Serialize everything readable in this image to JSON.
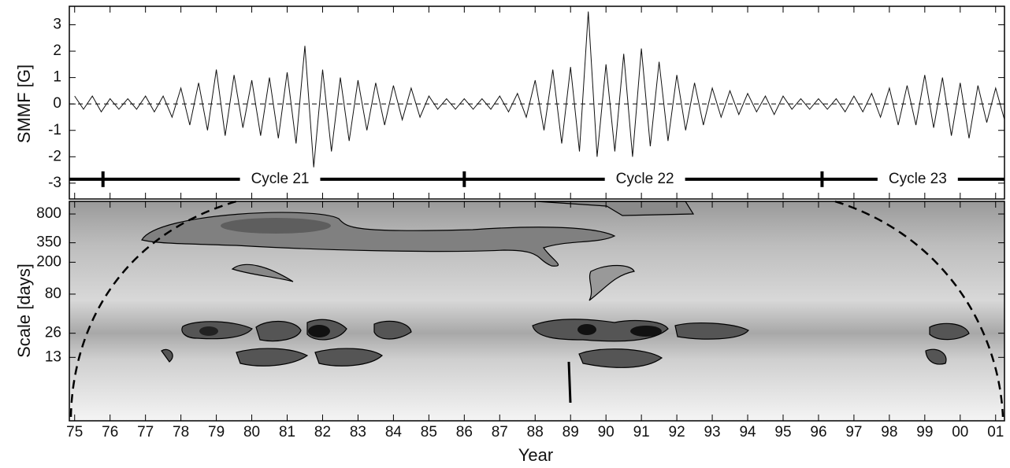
{
  "chart_data": [
    {
      "type": "line",
      "ylabel": "SMMF [G]",
      "color": "#111111",
      "xlim": [
        74.85,
        101.25
      ],
      "ylim": [
        -3.6,
        3.7
      ],
      "yticks": [
        -3,
        -2,
        -1,
        0,
        1,
        2,
        3
      ],
      "x": [
        75,
        75.25,
        75.5,
        75.75,
        76,
        76.25,
        76.5,
        76.75,
        77,
        77.25,
        77.5,
        77.75,
        78,
        78.25,
        78.5,
        78.75,
        79,
        79.25,
        79.5,
        79.75,
        80,
        80.25,
        80.5,
        80.75,
        81,
        81.25,
        81.5,
        81.75,
        82,
        82.25,
        82.5,
        82.75,
        83,
        83.25,
        83.5,
        83.75,
        84,
        84.25,
        84.5,
        84.75,
        85,
        85.25,
        85.5,
        85.75,
        86,
        86.25,
        86.5,
        86.75,
        87,
        87.25,
        87.5,
        87.75,
        88,
        88.25,
        88.5,
        88.75,
        89,
        89.25,
        89.5,
        89.75,
        90,
        90.25,
        90.5,
        90.75,
        91,
        91.25,
        91.5,
        91.75,
        92,
        92.25,
        92.5,
        92.75,
        93,
        93.25,
        93.5,
        93.75,
        94,
        94.25,
        94.5,
        94.75,
        95,
        95.25,
        95.5,
        95.75,
        96,
        96.25,
        96.5,
        96.75,
        97,
        97.25,
        97.5,
        97.75,
        98,
        98.25,
        98.5,
        98.75,
        99,
        99.25,
        99.5,
        99.75,
        100,
        100.25,
        100.5,
        100.75,
        101,
        101.25
      ],
      "series": [
        {
          "values": [
            0.3,
            -0.2,
            0.3,
            -0.3,
            0.2,
            -0.2,
            0.2,
            -0.2,
            0.3,
            -0.3,
            0.3,
            -0.5,
            0.6,
            -0.8,
            0.8,
            -1.0,
            1.3,
            -1.2,
            1.1,
            -0.9,
            0.9,
            -1.2,
            1.0,
            -1.3,
            1.2,
            -1.5,
            2.2,
            -2.4,
            1.3,
            -1.8,
            1.0,
            -1.4,
            0.9,
            -1.0,
            0.8,
            -0.8,
            0.7,
            -0.6,
            0.6,
            -0.5,
            0.3,
            -0.2,
            0.2,
            -0.2,
            0.2,
            -0.2,
            0.2,
            -0.2,
            0.3,
            -0.3,
            0.4,
            -0.5,
            0.9,
            -1.0,
            1.3,
            -1.5,
            1.4,
            -1.8,
            3.5,
            -2.0,
            1.5,
            -1.8,
            1.9,
            -2.0,
            2.1,
            -1.6,
            1.6,
            -1.4,
            1.1,
            -1.0,
            0.8,
            -0.8,
            0.6,
            -0.5,
            0.5,
            -0.4,
            0.4,
            -0.3,
            0.3,
            -0.4,
            0.3,
            -0.2,
            0.2,
            -0.2,
            0.2,
            -0.2,
            0.2,
            -0.3,
            0.3,
            -0.3,
            0.4,
            -0.5,
            0.6,
            -0.8,
            0.7,
            -0.8,
            1.1,
            -0.9,
            1.0,
            -1.2,
            0.8,
            -1.3,
            0.7,
            -0.7,
            0.6,
            -0.6
          ]
        }
      ],
      "cycle_level": -2.85,
      "cycle_minima": [
        75.8,
        86.0,
        96.1
      ],
      "cycle_labels": [
        {
          "text": "Cycle 21",
          "x": 80.8
        },
        {
          "text": "Cycle 22",
          "x": 91.1
        },
        {
          "text": "Cycle 23",
          "x": 98.8
        }
      ]
    },
    {
      "type": "wavelet",
      "ylabel": "Scale [days]",
      "xlabel": "Year",
      "log_y": true,
      "xlim": [
        74.85,
        101.25
      ],
      "ylim": [
        2.1,
        1150
      ],
      "yticks": [
        13,
        26,
        80,
        200,
        350,
        800
      ],
      "xticks": [
        75,
        76,
        77,
        78,
        79,
        80,
        81,
        82,
        83,
        84,
        85,
        86,
        87,
        88,
        89,
        90,
        91,
        92,
        93,
        94,
        95,
        96,
        97,
        98,
        99,
        {
          "value": 100,
          "label": "00"
        },
        {
          "value": 101,
          "label": "01"
        }
      ]
    }
  ]
}
